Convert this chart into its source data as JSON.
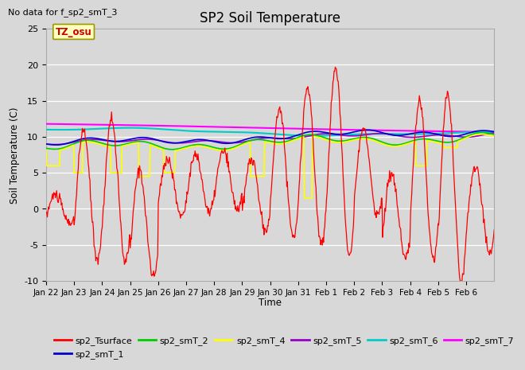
{
  "title": "SP2 Soil Temperature",
  "xlabel": "Time",
  "ylabel": "Soil Temperature (C)",
  "note": "No data for f_sp2_smT_3",
  "timezone_label": "TZ_osu",
  "ylim": [
    -10,
    25
  ],
  "xlim": [
    0,
    384
  ],
  "xtick_labels": [
    "Jan 22",
    "Jan 23",
    "Jan 24",
    "Jan 25",
    "Jan 26",
    "Jan 27",
    "Jan 28",
    "Jan 29",
    "Jan 30",
    "Jan 31",
    "Feb 1",
    "Feb 2",
    "Feb 3",
    "Feb 4",
    "Feb 5",
    "Feb 6"
  ],
  "xtick_positions": [
    0,
    24,
    48,
    72,
    96,
    120,
    144,
    168,
    192,
    216,
    240,
    264,
    288,
    312,
    336,
    360
  ],
  "ytick_labels": [
    "-10",
    "-5",
    "0",
    "5",
    "10",
    "15",
    "20",
    "25"
  ],
  "ytick_positions": [
    -10,
    -5,
    0,
    5,
    10,
    15,
    20,
    25
  ],
  "series_colors": {
    "sp2_Tsurface": "#ff0000",
    "sp2_smT_1": "#0000cc",
    "sp2_smT_2": "#00cc00",
    "sp2_smT_4": "#ffff00",
    "sp2_smT_5": "#9900cc",
    "sp2_smT_6": "#00cccc",
    "sp2_smT_7": "#ff00ff"
  },
  "bg_color": "#d8d8d8",
  "plot_bg_color": "#d8d8d8",
  "grid_color": "#ffffff",
  "legend_entries": [
    "sp2_Tsurface",
    "sp2_smT_1",
    "sp2_smT_2",
    "sp2_smT_4",
    "sp2_smT_5",
    "sp2_smT_6",
    "sp2_smT_7"
  ]
}
